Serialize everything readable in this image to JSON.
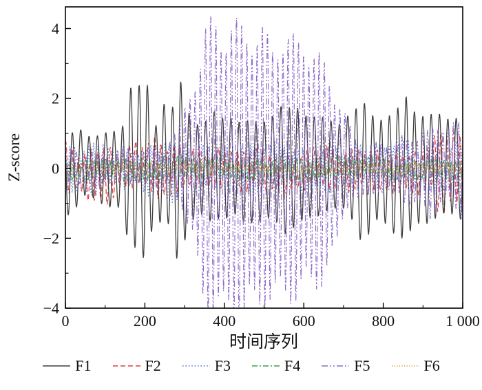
{
  "chart_data": {
    "type": "line",
    "title": "",
    "xlabel": "时间序列",
    "ylabel": "Z-score",
    "xlim": [
      0,
      1000
    ],
    "ylim": [
      -4,
      4.62
    ],
    "x_ticks": [
      0,
      200,
      400,
      600,
      800,
      1000
    ],
    "x_tick_labels": [
      "0",
      "200",
      "400",
      "600",
      "800",
      "1 000"
    ],
    "x_minor_step": 100,
    "y_ticks": [
      -4,
      -2,
      0,
      2,
      4
    ],
    "y_tick_labels": [
      "−4",
      "−2",
      "0",
      "2",
      "4"
    ],
    "y_minor_step": 1,
    "grid": false,
    "legend_position": "bottom",
    "axis_color": "#000000",
    "draw_order": [
      "F3",
      "F2",
      "F4",
      "F6",
      "F1",
      "F5"
    ],
    "series": [
      {
        "name": "F1",
        "color": "#3f3f3f",
        "dash": "solid",
        "dasharray": "",
        "width": 1.3,
        "period": 21,
        "phase": 2.6,
        "mod_period": 90,
        "mod_depth": 0.15,
        "mod_phase": 0.4,
        "noise": 0.15,
        "seed": 7,
        "envelope": [
          [
            0,
            1.25
          ],
          [
            50,
            1.0
          ],
          [
            100,
            1.05
          ],
          [
            140,
            1.2
          ],
          [
            160,
            2.65
          ],
          [
            185,
            2.4
          ],
          [
            205,
            2.6
          ],
          [
            225,
            1.3
          ],
          [
            245,
            2.2
          ],
          [
            265,
            1.6
          ],
          [
            285,
            2.8
          ],
          [
            305,
            1.9
          ],
          [
            330,
            1.5
          ],
          [
            380,
            1.55
          ],
          [
            430,
            1.6
          ],
          [
            470,
            1.45
          ],
          [
            520,
            1.7
          ],
          [
            560,
            1.85
          ],
          [
            600,
            1.8
          ],
          [
            640,
            1.4
          ],
          [
            680,
            1.35
          ],
          [
            720,
            1.6
          ],
          [
            755,
            2.1
          ],
          [
            790,
            1.6
          ],
          [
            825,
            1.7
          ],
          [
            860,
            2.3
          ],
          [
            895,
            1.6
          ],
          [
            930,
            1.55
          ],
          [
            965,
            1.6
          ],
          [
            1000,
            1.45
          ]
        ]
      },
      {
        "name": "F2",
        "color": "#e13b3b",
        "dash": "dashed",
        "dasharray": "7 4",
        "width": 1.2,
        "period": 16,
        "phase": 1.2,
        "mod_period": 55,
        "mod_depth": 0.3,
        "mod_phase": 1.1,
        "noise": 0.22,
        "seed": 13,
        "envelope": [
          [
            0,
            0.75
          ],
          [
            40,
            0.6
          ],
          [
            95,
            1.0
          ],
          [
            130,
            0.6
          ],
          [
            200,
            0.7
          ],
          [
            240,
            0.95
          ],
          [
            280,
            0.7
          ],
          [
            350,
            0.55
          ],
          [
            450,
            0.6
          ],
          [
            550,
            0.55
          ],
          [
            650,
            0.6
          ],
          [
            750,
            0.65
          ],
          [
            850,
            0.6
          ],
          [
            910,
            0.7
          ],
          [
            955,
            1.4
          ],
          [
            980,
            1.2
          ],
          [
            1000,
            0.9
          ]
        ]
      },
      {
        "name": "F3",
        "color": "#4f6fd8",
        "dash": "dotted",
        "dasharray": "1.6 2.8",
        "width": 1.2,
        "period": 12,
        "phase": 2.1,
        "mod_period": 65,
        "mod_depth": 0.3,
        "mod_phase": 0.2,
        "noise": 0.2,
        "seed": 21,
        "envelope": [
          [
            0,
            0.6
          ],
          [
            60,
            0.85
          ],
          [
            120,
            0.55
          ],
          [
            190,
            0.6
          ],
          [
            250,
            1.0
          ],
          [
            300,
            0.7
          ],
          [
            380,
            0.6
          ],
          [
            470,
            0.8
          ],
          [
            560,
            0.6
          ],
          [
            650,
            0.65
          ],
          [
            740,
            0.6
          ],
          [
            830,
            0.7
          ],
          [
            920,
            0.65
          ],
          [
            1000,
            0.75
          ]
        ]
      },
      {
        "name": "F4",
        "color": "#37a04d",
        "dash": "dash-dot",
        "dasharray": "8 3 2 3",
        "width": 1.1,
        "period": 10,
        "phase": 0.3,
        "mod_period": 48,
        "mod_depth": 0.25,
        "mod_phase": 0.9,
        "noise": 0.1,
        "seed": 29,
        "envelope": [
          [
            0,
            0.3
          ],
          [
            200,
            0.35
          ],
          [
            400,
            0.3
          ],
          [
            600,
            0.33
          ],
          [
            800,
            0.3
          ],
          [
            1000,
            0.3
          ]
        ]
      },
      {
        "name": "F5",
        "color": "#8e6bc8",
        "dash": "dash-dot-dot",
        "dasharray": "9 3 2 3 2 3",
        "width": 1.2,
        "period": 13,
        "phase": 0.8,
        "mod_period": 70,
        "mod_depth": 0.25,
        "mod_phase": 0.5,
        "noise": 0.2,
        "seed": 37,
        "envelope": [
          [
            0,
            0.45
          ],
          [
            150,
            0.5
          ],
          [
            250,
            0.6
          ],
          [
            290,
            1.2
          ],
          [
            320,
            2.5
          ],
          [
            350,
            4.2
          ],
          [
            380,
            4.6
          ],
          [
            420,
            4.4
          ],
          [
            450,
            4.6
          ],
          [
            480,
            4.3
          ],
          [
            510,
            4.0
          ],
          [
            540,
            4.2
          ],
          [
            570,
            3.9
          ],
          [
            600,
            4.0
          ],
          [
            630,
            3.6
          ],
          [
            655,
            3.2
          ],
          [
            680,
            2.6
          ],
          [
            700,
            1.6
          ],
          [
            720,
            1.0
          ],
          [
            760,
            0.8
          ],
          [
            800,
            0.7
          ],
          [
            840,
            0.9
          ],
          [
            880,
            1.1
          ],
          [
            920,
            1.3
          ],
          [
            960,
            1.2
          ],
          [
            1000,
            1.4
          ]
        ]
      },
      {
        "name": "F6",
        "color": "#d2971f",
        "dash": "fine-dotted",
        "dasharray": "1.2 2.4",
        "width": 1.2,
        "period": 8,
        "phase": 1.7,
        "mod_period": 40,
        "mod_depth": 0.2,
        "mod_phase": 0.1,
        "noise": 0.05,
        "seed": 45,
        "envelope": [
          [
            0,
            0.13
          ],
          [
            250,
            0.14
          ],
          [
            500,
            0.12
          ],
          [
            750,
            0.14
          ],
          [
            1000,
            0.13
          ]
        ]
      }
    ],
    "legend": {
      "labels": [
        "F1",
        "F2",
        "F3",
        "F4",
        "F5",
        "F6"
      ]
    }
  }
}
